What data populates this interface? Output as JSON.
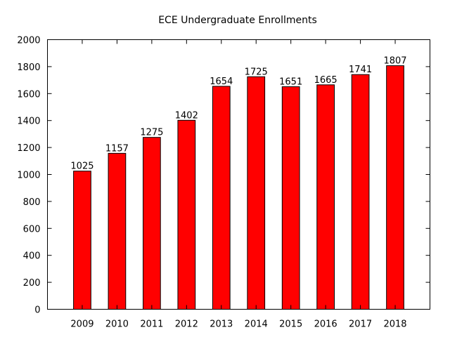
{
  "chart_data": {
    "type": "bar",
    "title": "ECE Undergraduate Enrollments",
    "xlabel": "",
    "ylabel": "",
    "categories": [
      "2009",
      "2010",
      "2011",
      "2012",
      "2013",
      "2014",
      "2015",
      "2016",
      "2017",
      "2018"
    ],
    "values": [
      1025,
      1157,
      1275,
      1402,
      1654,
      1725,
      1651,
      1665,
      1741,
      1807
    ],
    "ylim": [
      0,
      2000
    ],
    "yticks": [
      0,
      200,
      400,
      600,
      800,
      1000,
      1200,
      1400,
      1600,
      1800,
      2000
    ],
    "grid": false,
    "legend": false,
    "bar_color": "#ff0000",
    "bar_edge_color": "#000000"
  }
}
